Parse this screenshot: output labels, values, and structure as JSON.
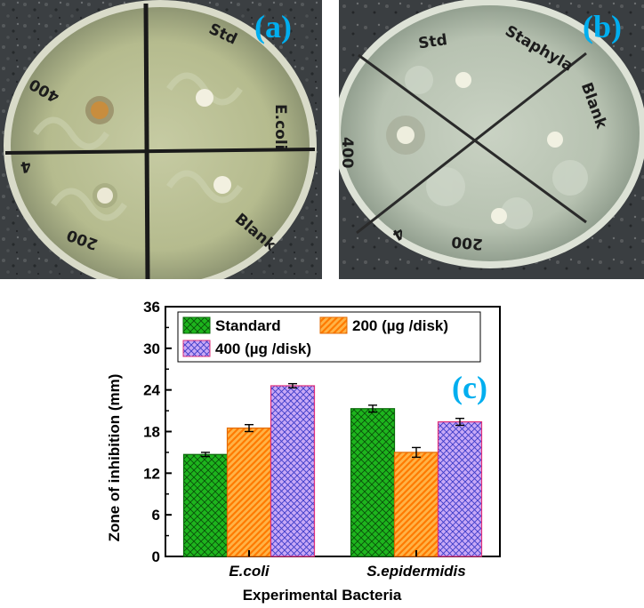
{
  "panels": {
    "a": {
      "label": "(a)",
      "marks": [
        "Std",
        "E.coli",
        "Blank",
        "200",
        "4",
        "400"
      ]
    },
    "b": {
      "label": "(b)",
      "marks": [
        "Std",
        "Staphyla",
        "Blank",
        "400",
        "200",
        "4"
      ]
    },
    "c": {
      "label": "(c)"
    }
  },
  "colors": {
    "standard": "#1db51d",
    "dose200": "#ff9a1a",
    "dose400": "#b78cf2",
    "errorbar": "#000000"
  },
  "chart_data": {
    "type": "bar",
    "categories": [
      "E.coli",
      "S.epidermidis"
    ],
    "series": [
      {
        "name": "Standard",
        "values": [
          14.7,
          21.3
        ],
        "errors": [
          0.3,
          0.5
        ],
        "pattern": "crosshatch-green"
      },
      {
        "name": "200 (µg /disk)",
        "values": [
          18.5,
          15.0
        ],
        "errors": [
          0.5,
          0.7
        ],
        "pattern": "diagonal-orange"
      },
      {
        "name": "400 (µg /disk)",
        "values": [
          24.6,
          19.4
        ],
        "errors": [
          0.3,
          0.5
        ],
        "pattern": "crosshatch-purple"
      }
    ],
    "xlabel": "Experimental Bacteria",
    "ylabel": "Zone of inhibition (mm)",
    "ylim": [
      0,
      36
    ],
    "yticks": [
      "0",
      "6",
      "12",
      "18",
      "24",
      "30",
      "36"
    ],
    "legend_position": "top-left"
  }
}
